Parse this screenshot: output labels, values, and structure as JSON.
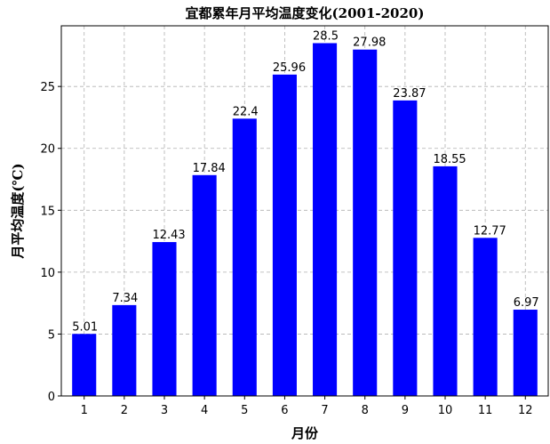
{
  "chart_data": {
    "type": "bar",
    "title": "宜都累年月平均温度变化(2001-2020)",
    "xlabel": "月份",
    "ylabel": "月平均温度(℃)",
    "categories": [
      "1",
      "2",
      "3",
      "4",
      "5",
      "6",
      "7",
      "8",
      "9",
      "10",
      "11",
      "12"
    ],
    "values": [
      5.01,
      7.34,
      12.43,
      17.84,
      22.4,
      25.96,
      28.5,
      27.98,
      23.87,
      18.55,
      12.77,
      6.97
    ],
    "value_labels": [
      "5.01",
      "7.34",
      "12.43",
      "17.84",
      "22.4",
      "25.96",
      "28.5",
      "27.98",
      "23.87",
      "18.55",
      "12.77",
      "6.97"
    ],
    "yticks": [
      0,
      5,
      10,
      15,
      20,
      25
    ],
    "ylim": [
      0,
      29.9
    ],
    "bar_color": "#0000ff",
    "grid": true,
    "grid_color": "#b0b0b0",
    "grid_style": "dashed"
  }
}
